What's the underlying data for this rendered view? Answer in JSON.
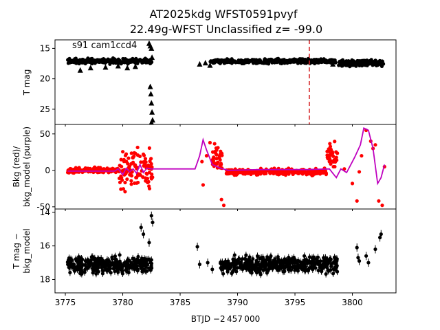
{
  "title_line1": "AT2025kdg  WFST0591pvyf",
  "title_line2": "22.49g-WFST Unclassified z= -99.0",
  "annotation": "s91 cam1ccd4",
  "xlabel": "BTJD −2 457 000",
  "colors": {
    "bkg": "#ff0000",
    "model": "#bf00bf",
    "vline": "#d62728",
    "points": "#000000"
  },
  "chart_data": [
    {
      "type": "scatter",
      "panel": "top",
      "ylabel": "T mag",
      "yinverted": true,
      "ylim": [
        27.5,
        13.6
      ],
      "yticks": [
        15,
        20,
        25
      ],
      "xlim": [
        3774.1,
        3803.8
      ],
      "vline_x": 3796.25,
      "series": [
        {
          "marker": "circle",
          "segments": [
            {
              "x0": 3775.2,
              "x1": 3782.6,
              "y_center": 17.1,
              "spread": 0.6
            },
            {
              "x0": 3787.6,
              "x1": 3798.6,
              "y_center": 17.1,
              "spread": 0.5
            },
            {
              "x0": 3798.8,
              "x1": 3802.8,
              "y_center": 17.4,
              "spread": 0.8
            }
          ]
        },
        {
          "marker": "triangle",
          "points": [
            [
              3776.3,
              18.6
            ],
            [
              3777.2,
              18.2
            ],
            [
              3778.5,
              18.1
            ],
            [
              3779.6,
              17.9
            ],
            [
              3780.4,
              18.2
            ],
            [
              3781.1,
              18.0
            ],
            [
              3786.7,
              17.6
            ],
            [
              3787.2,
              17.4
            ],
            [
              3787.6,
              17.8
            ],
            [
              3798.3,
              17.6
            ],
            [
              3782.3,
              14.2
            ],
            [
              3782.4,
              14.6
            ],
            [
              3782.5,
              15.0
            ],
            [
              3782.55,
              16.5
            ],
            [
              3782.4,
              21.3
            ],
            [
              3782.45,
              22.5
            ],
            [
              3782.5,
              24.0
            ],
            [
              3782.55,
              25.5
            ],
            [
              3782.6,
              26.8
            ],
            [
              3782.5,
              27.2
            ]
          ]
        }
      ]
    },
    {
      "type": "scatter",
      "panel": "middle",
      "ylabel": "Bkg (red)/\nbkg_model (purple)",
      "ylim": [
        -53,
        63
      ],
      "yticks": [
        -50,
        0,
        50
      ],
      "xlim": [
        3774.1,
        3803.8
      ],
      "series": [
        {
          "name": "bkg",
          "marker": "circle",
          "segments": [
            {
              "x0": 3775.2,
              "x1": 3779.7,
              "y_center": 0,
              "spread": 5
            },
            {
              "x0": 3779.7,
              "x1": 3780.3,
              "y_center": 0,
              "spread": 48
            },
            {
              "x0": 3780.3,
              "x1": 3782.6,
              "y_center": 5,
              "spread": 42
            },
            {
              "x0": 3787.8,
              "x1": 3788.7,
              "y_center": 15,
              "spread": 30
            },
            {
              "x0": 3789.0,
              "x1": 3797.8,
              "y_center": -2,
              "spread": 6
            },
            {
              "x0": 3797.8,
              "x1": 3798.7,
              "y_center": 20,
              "spread": 25
            }
          ],
          "points": [
            [
              3786.9,
              12
            ],
            [
              3787.3,
              20
            ],
            [
              3787.6,
              38
            ],
            [
              3787.0,
              -20
            ],
            [
              3788.8,
              -48
            ],
            [
              3788.6,
              -40
            ],
            [
              3799.3,
              2
            ],
            [
              3800.0,
              -18
            ],
            [
              3800.4,
              -42
            ],
            [
              3800.8,
              20
            ],
            [
              3801.2,
              55
            ],
            [
              3801.6,
              40
            ],
            [
              3802.0,
              35
            ],
            [
              3802.3,
              -42
            ],
            [
              3802.6,
              -48
            ],
            [
              3802.8,
              5
            ],
            [
              3801.8,
              30
            ],
            [
              3800.6,
              -2
            ]
          ]
        },
        {
          "name": "bkg_model",
          "line": [
            [
              3775.2,
              -1
            ],
            [
              3779.3,
              -1
            ],
            [
              3779.6,
              2
            ],
            [
              3780.0,
              -6
            ],
            [
              3780.3,
              3
            ],
            [
              3780.6,
              -2
            ],
            [
              3780.9,
              2
            ],
            [
              3781.2,
              -4
            ],
            [
              3781.5,
              8
            ],
            [
              3781.8,
              -3
            ],
            [
              3782.1,
              3
            ],
            [
              3782.5,
              2
            ],
            [
              3786.3,
              2
            ],
            [
              3786.7,
              20
            ],
            [
              3787.0,
              42
            ],
            [
              3787.3,
              28
            ],
            [
              3787.8,
              8
            ],
            [
              3788.5,
              3
            ],
            [
              3789.2,
              0
            ],
            [
              3792.0,
              1
            ],
            [
              3796.0,
              1
            ],
            [
              3798.0,
              2
            ],
            [
              3798.6,
              -10
            ],
            [
              3799.0,
              2
            ],
            [
              3799.5,
              -3
            ],
            [
              3800.2,
              18
            ],
            [
              3800.7,
              35
            ],
            [
              3801.0,
              58
            ],
            [
              3801.4,
              55
            ],
            [
              3801.8,
              30
            ],
            [
              3802.2,
              -18
            ],
            [
              3802.5,
              -10
            ],
            [
              3802.8,
              8
            ]
          ]
        }
      ]
    },
    {
      "type": "scatter",
      "panel": "bottom",
      "ylabel": "T mag −\nbkg_model",
      "yinverted": true,
      "ylim": [
        18.8,
        13.8
      ],
      "yticks": [
        14,
        16,
        18
      ],
      "xlim": [
        3774.1,
        3803.8
      ],
      "series": [
        {
          "marker": "circle_errorbar",
          "segments": [
            {
              "x0": 3775.2,
              "x1": 3782.6,
              "y_center": 17.15,
              "spread": 0.7
            },
            {
              "x0": 3788.5,
              "x1": 3798.7,
              "y_center": 17.1,
              "spread": 0.7
            }
          ],
          "points": [
            [
              3781.6,
              14.9
            ],
            [
              3781.8,
              15.3
            ],
            [
              3782.5,
              14.2
            ],
            [
              3782.6,
              14.6
            ],
            [
              3782.3,
              15.8
            ],
            [
              3786.5,
              16.05
            ],
            [
              3786.7,
              17.1
            ],
            [
              3787.4,
              17.0
            ],
            [
              3787.8,
              17.4
            ],
            [
              3800.4,
              16.1
            ],
            [
              3800.5,
              16.7
            ],
            [
              3800.6,
              16.9
            ],
            [
              3801.2,
              16.6
            ],
            [
              3801.4,
              17.0
            ],
            [
              3802.0,
              16.2
            ],
            [
              3802.4,
              15.5
            ],
            [
              3802.5,
              15.3
            ]
          ]
        }
      ]
    }
  ],
  "xticks": [
    3775,
    3780,
    3785,
    3790,
    3795,
    3800
  ]
}
